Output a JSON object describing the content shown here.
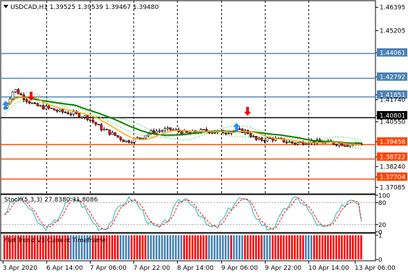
{
  "header": {
    "symbol": "USDCAD,H1",
    "open": "1.39525",
    "high": "1.39539",
    "low": "1.39467",
    "close": "1.39480"
  },
  "price_axis": {
    "range": [
      1.3695,
      1.467
    ],
    "ticks": [
      "1.46395",
      "1.45205",
      "1.44061",
      "1.42792",
      "1.41851",
      "1.41740",
      "1.40801",
      "1.40550",
      "1.39458",
      "1.38722",
      "1.38240",
      "1.37704",
      "1.37085"
    ]
  },
  "levels": [
    {
      "price": "1.44061",
      "color": "#4a82b4",
      "highlight": true
    },
    {
      "price": "1.42792",
      "color": "#4a82b4",
      "highlight": true
    },
    {
      "price": "1.41851",
      "color": "#4a82b4",
      "highlight": true
    },
    {
      "price": "1.40801",
      "color": "#000000",
      "highlight": false
    },
    {
      "price": "1.39458",
      "color": "#ff4500",
      "highlight": true
    },
    {
      "price": "1.38722",
      "color": "#ff4500",
      "highlight": true
    },
    {
      "price": "1.37704",
      "color": "#ff4500",
      "highlight": true
    }
  ],
  "stoch": {
    "label": "Stoch(5,3,3) 27.8380 31.8086",
    "ticks": [
      "100",
      "80",
      "20",
      "0"
    ],
    "main": 27.838,
    "signal": 31.8086
  },
  "trend_panel": {
    "label": "Flat Trend V3 Current Timeframe",
    "ticks": [
      "1",
      "0"
    ],
    "colors": {
      "up": "#4682b4",
      "down": "#ff0000"
    }
  },
  "time_axis": [
    "3 Apr 2020",
    "6 Apr 14:00",
    "7 Apr 06:00",
    "7 Apr 22:00",
    "8 Apr 14:00",
    "9 Apr 06:00",
    "9 Apr 22:00",
    "10 Apr 14:00",
    "13 Apr 06:00"
  ],
  "colors": {
    "bull": "#ffffff",
    "bear": "#ff0000",
    "ma_fast": "#ffa500",
    "ma_slow": "#008000",
    "envelope": "#32cd32",
    "arrow_buy": "#1e90ff",
    "arrow_sell": "#ff0000",
    "stoch_main": "#20b2aa",
    "stoch_signal": "#ff0000"
  }
}
